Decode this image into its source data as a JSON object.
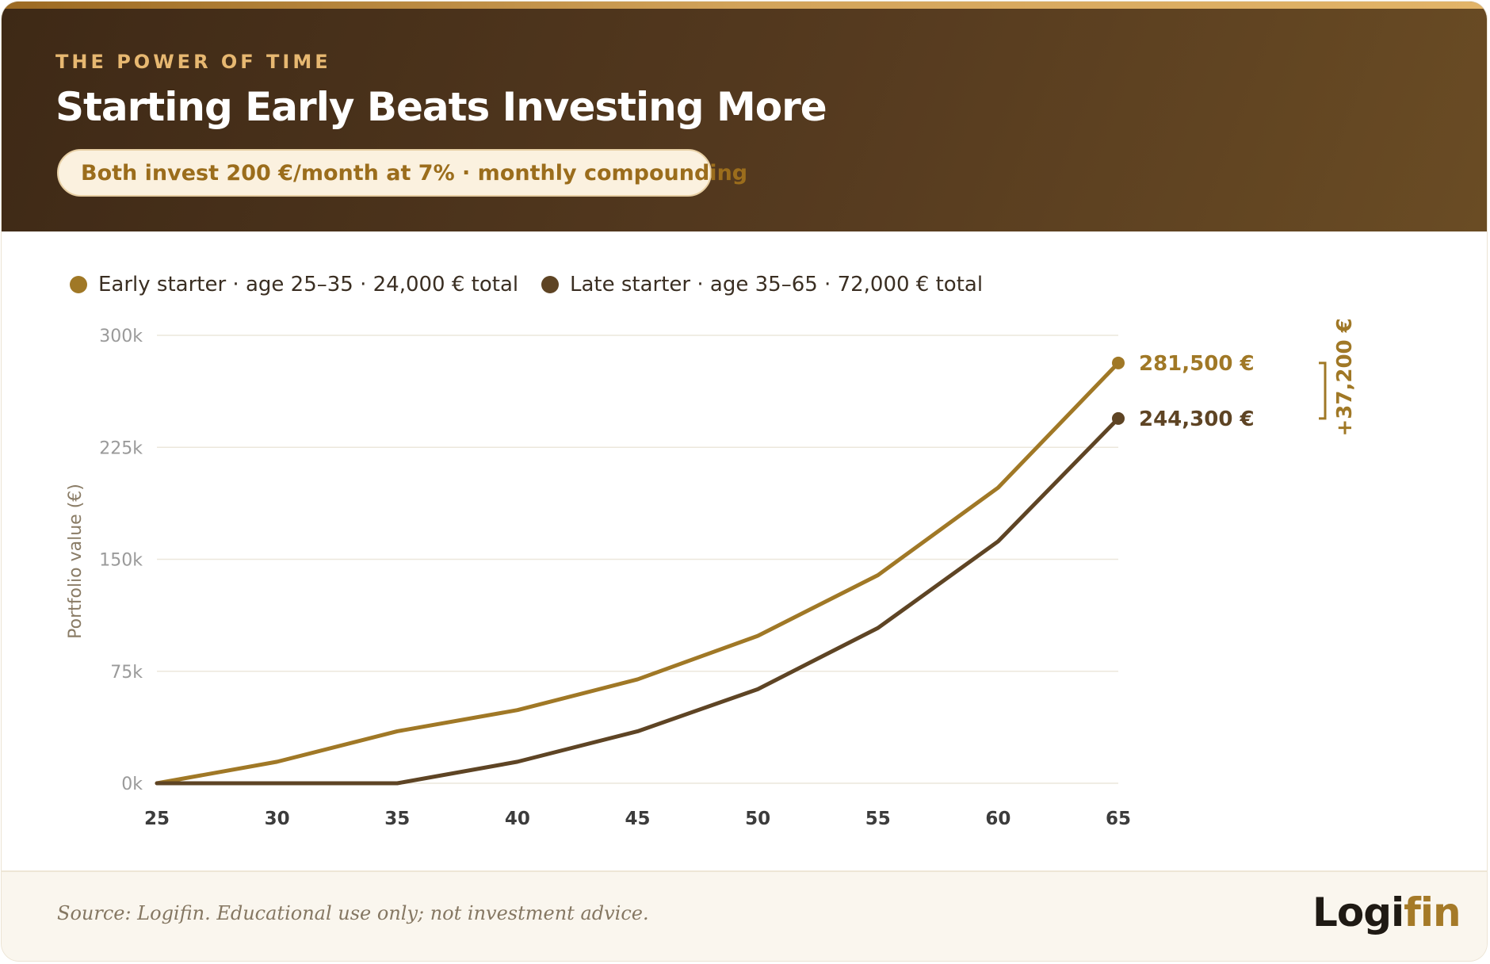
{
  "header": {
    "eyebrow": "THE POWER OF TIME",
    "title": "Starting Early Beats Investing More",
    "pill": "Both invest 200 €/month at 7% · monthly compounding"
  },
  "colors": {
    "early": "#a07826",
    "late": "#5e4424",
    "grid": "#ece7dc",
    "tick_y": "#9a9a9a",
    "tick_x": "#3c3c3c"
  },
  "legend": [
    {
      "label": "Early starter · age 25–35 · 24,000 € total",
      "color": "#a07826"
    },
    {
      "label": "Late starter · age 35–65 · 72,000 € total",
      "color": "#5e4424"
    }
  ],
  "chart_data": {
    "type": "line",
    "x": [
      25,
      30,
      35,
      40,
      45,
      50,
      55,
      60,
      65
    ],
    "series": [
      {
        "key": "early",
        "values": [
          0,
          14400,
          34800,
          49000,
          69600,
          98700,
          139400,
          198000,
          281500
        ]
      },
      {
        "key": "late",
        "values": [
          0,
          0,
          0,
          14400,
          34800,
          63000,
          104000,
          162000,
          244300
        ]
      }
    ],
    "ylabel": "Portfolio value (€)",
    "ylim": [
      0,
      300000
    ],
    "yticks": [
      0,
      75000,
      150000,
      225000,
      300000
    ],
    "ytick_labels": [
      "0k",
      "75k",
      "150k",
      "225k",
      "300k"
    ],
    "xtick_labels": [
      "25",
      "30",
      "35",
      "40",
      "45",
      "50",
      "55",
      "60",
      "65"
    ],
    "end_labels": {
      "early": "281,500 €",
      "late": "244,300 €"
    },
    "difference_label": "+37,200 €",
    "grid": true,
    "legend_position": "top-left"
  },
  "footer": {
    "source": "Source: Logifin. Educational use only; not investment advice.",
    "logo_part1": "Logi",
    "logo_part2": "fin"
  }
}
